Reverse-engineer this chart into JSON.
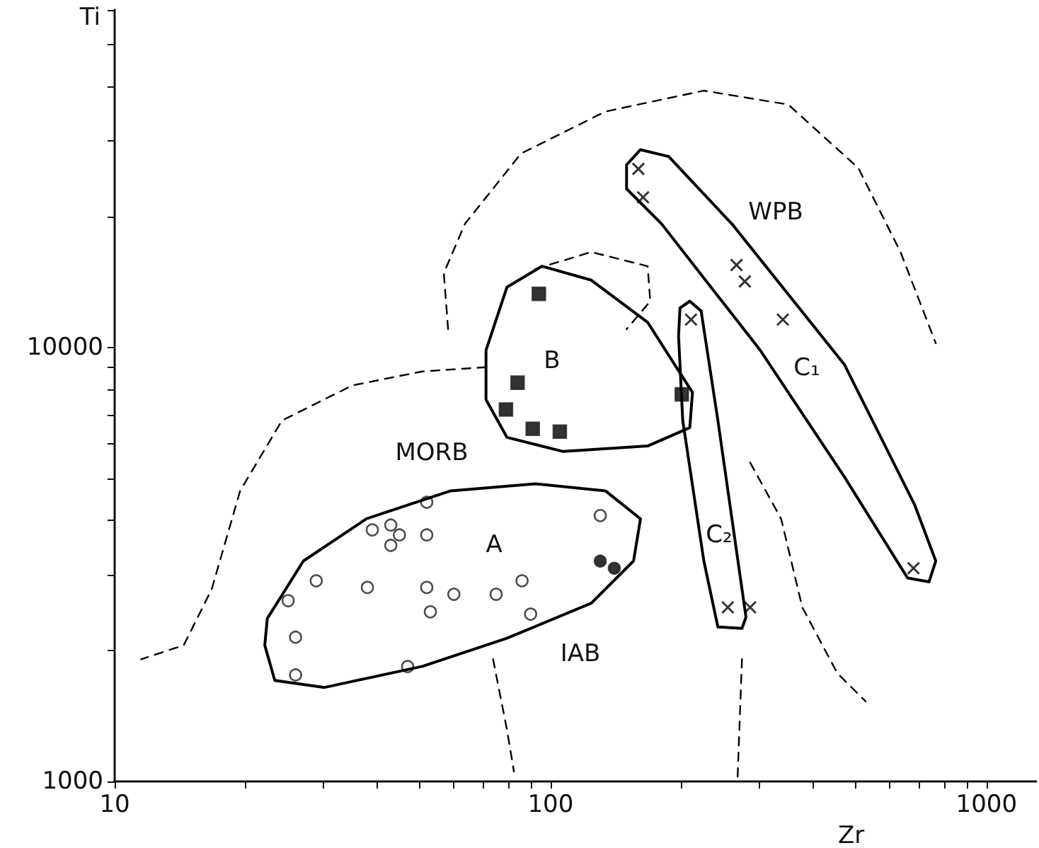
{
  "chart_data": {
    "type": "scatter",
    "xlabel": "Zr",
    "ylabel": "Ti",
    "log": "xy",
    "xlim": [
      10,
      1300
    ],
    "ylim": [
      1000,
      60000
    ],
    "xticks": [
      10,
      {
        "value": 20,
        "label": null
      },
      {
        "value": 30,
        "label": null
      },
      {
        "value": 40,
        "label": null
      },
      {
        "value": 50,
        "label": null
      },
      {
        "value": 60,
        "label": null
      },
      {
        "value": 70,
        "label": null
      },
      {
        "value": 80,
        "label": null
      },
      {
        "value": 90,
        "label": null
      },
      100,
      {
        "value": 200,
        "label": null
      },
      {
        "value": 300,
        "label": null
      },
      {
        "value": 400,
        "label": null
      },
      {
        "value": 500,
        "label": null
      },
      {
        "value": 600,
        "label": null
      },
      {
        "value": 700,
        "label": null
      },
      {
        "value": 800,
        "label": null
      },
      {
        "value": 900,
        "label": null
      },
      1000
    ],
    "yticks": [
      1000,
      {
        "value": 2000,
        "label": null
      },
      {
        "value": 3000,
        "label": null
      },
      {
        "value": 4000,
        "label": null
      },
      {
        "value": 5000,
        "label": null
      },
      {
        "value": 6000,
        "label": null
      },
      {
        "value": 7000,
        "label": null
      },
      {
        "value": 8000,
        "label": null
      },
      {
        "value": 9000,
        "label": null
      },
      10000,
      {
        "value": 20000,
        "label": null
      },
      {
        "value": 30000,
        "label": null
      },
      {
        "value": 40000,
        "label": null
      },
      {
        "value": 50000,
        "label": null
      },
      {
        "value": 60000,
        "label": null
      }
    ],
    "series": [
      {
        "marker": "circle",
        "color": "#ffffff",
        "x": [
          52,
          39,
          43,
          45,
          43,
          52,
          130,
          29,
          38,
          52,
          60,
          75,
          86,
          53,
          90,
          25,
          26,
          26,
          47
        ],
        "values": [
          4400,
          3800,
          3900,
          3700,
          3500,
          3700,
          4100,
          2900,
          2800,
          2800,
          2700,
          2700,
          2900,
          2460,
          2430,
          2610,
          2150,
          1760,
          1840
        ]
      },
      {
        "marker": "circle",
        "color": "#000000",
        "x": [
          130,
          140
        ],
        "values": [
          3220,
          3100
        ]
      },
      {
        "marker": "square",
        "color": "#000000",
        "x": [
          94,
          84,
          79,
          91,
          105,
          200
        ],
        "values": [
          13300,
          8300,
          7200,
          6500,
          6400,
          7800
        ]
      },
      {
        "marker": "cross",
        "color": "#000000",
        "x": [
          159,
          163,
          267,
          279,
          341,
          210,
          680,
          255,
          287
        ],
        "values": [
          25800,
          22200,
          15500,
          14200,
          11600,
          11600,
          3100,
          2520,
          2520
        ]
      },
      {
        "type": "line",
        "line_style": "solid",
        "marker": "none",
        "color": "#000000",
        "x": [
          22.5,
          27.1,
          37.8,
          59,
          92.2,
          133.6,
          160.8,
          155,
          124,
          79.4,
          50.8,
          30.3,
          23.3,
          22.1,
          22.4
        ],
        "values": [
          2392,
          3222,
          4030,
          4675,
          4853,
          4675,
          4030,
          3222,
          2576,
          2138,
          1842,
          1647,
          1710,
          2060,
          2380
        ]
      },
      {
        "type": "line",
        "line_style": "solid",
        "marker": "none",
        "color": "#000000",
        "x": [
          71.1,
          79.4,
          95.6,
          124,
          167,
          211.6,
          208.6,
          167,
          106.9,
          79.4,
          71.1,
          71.1
        ],
        "values": [
          9860,
          13770,
          15400,
          14300,
          11430,
          7880,
          6540,
          5930,
          5760,
          6210,
          7590,
          9800
        ]
      },
      {
        "type": "line",
        "line_style": "solid",
        "marker": "none",
        "color": "#000000",
        "x": [
          149.4,
          160.8,
          186.6,
          260.6,
          472,
          684,
          765,
          738,
          659,
          472,
          302.6,
          179.8,
          149.4,
          149.4
        ],
        "values": [
          26360,
          28580,
          27560,
          19270,
          9140,
          4343,
          3222,
          2884,
          2944,
          5036,
          9860,
          19270,
          23220,
          26200
        ]
      },
      {
        "type": "line",
        "line_style": "solid",
        "marker": "none",
        "color": "#000000",
        "x": [
          198,
          208.6,
          221.5,
          242,
          280.7,
          274.8,
          242,
          224.7,
          201,
          196.6,
          198
        ],
        "values": [
          12330,
          12790,
          12140,
          6790,
          2392,
          2253,
          2270,
          3222,
          6790,
          10620,
          12250
        ]
      },
      {
        "type": "line",
        "line_style": "dashed",
        "marker": "none",
        "color": "#000000",
        "x": [
          58.2,
          56.9,
          63.6,
          85.5,
          133.6,
          224.7,
          351,
          508,
          635,
          765
        ],
        "values": [
          11020,
          14850,
          19270,
          27990,
          34990,
          39090,
          36310,
          25940,
          16600,
          10230
        ]
      },
      {
        "type": "line",
        "line_style": "dashed",
        "marker": "none",
        "color": "#000000",
        "x": [
          92.2,
          124,
          167,
          169.3,
          149.4
        ],
        "values": [
          15170,
          16600,
          15400,
          12790,
          11020
        ]
      },
      {
        "type": "line",
        "line_style": "dashed",
        "marker": "none",
        "color": "#000000",
        "x": [
          71.1,
          50.8,
          35.1,
          24.2,
          19.4,
          16.7,
          14.4,
          11.5
        ],
        "values": [
          9010,
          8810,
          8180,
          6790,
          4675,
          2775,
          2060,
          1913
        ]
      },
      {
        "type": "line",
        "line_style": "dashed",
        "marker": "none",
        "color": "#000000",
        "x": [
          73.8,
          79.4,
          82.4
        ],
        "values": [
          1913,
          1318,
          1054
        ]
      },
      {
        "type": "line",
        "line_style": "dashed",
        "marker": "none",
        "color": "#000000",
        "x": [
          287,
          338,
          378,
          455,
          528
        ],
        "values": [
          5430,
          4030,
          2519,
          1775,
          1530
        ]
      },
      {
        "type": "line",
        "line_style": "dashed",
        "marker": "none",
        "color": "#000000",
        "x": [
          274.8,
          268.5
        ],
        "values": [
          1913,
          1015
        ]
      }
    ],
    "annotations": [
      "A",
      "B",
      "WPB",
      "C₁",
      "C₂",
      "MORB",
      "IAB"
    ]
  }
}
